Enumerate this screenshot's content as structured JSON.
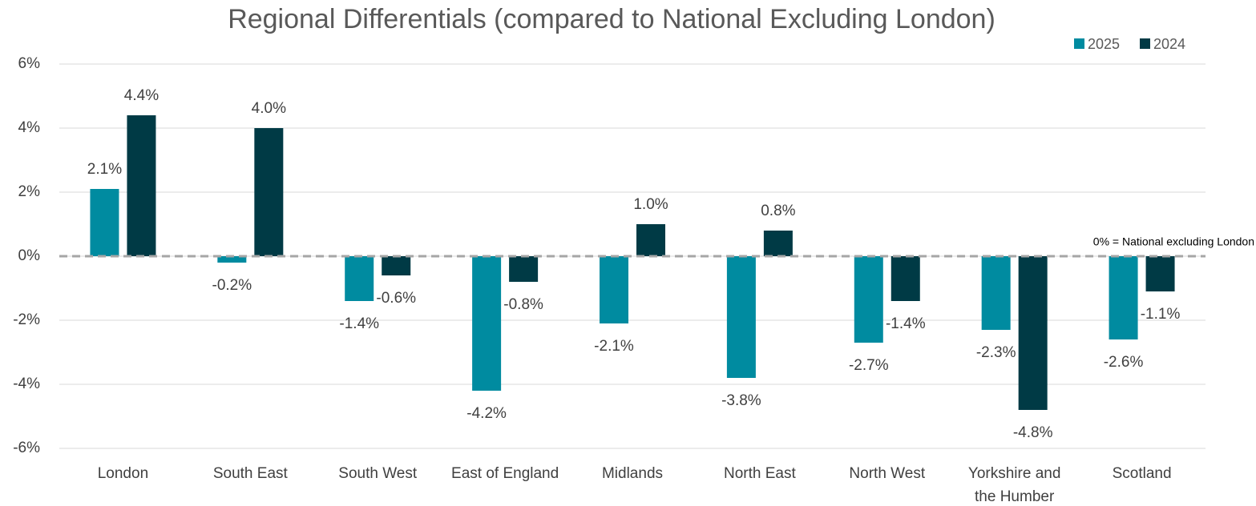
{
  "chart_data": {
    "type": "bar",
    "title": "Regional Differentials (compared to National Excluding London)",
    "categories": [
      "London",
      "South East",
      "South West",
      "East of England",
      "Midlands",
      "North East",
      "North West",
      "Yorkshire and the Humber",
      "Scotland"
    ],
    "series": [
      {
        "name": "2025",
        "color": "#008ba0",
        "values": [
          2.1,
          -0.2,
          -1.4,
          -4.2,
          -2.1,
          -3.8,
          -2.7,
          -2.3,
          -2.6
        ],
        "value_labels": [
          "2.1%",
          "-0.2%",
          "-1.4%",
          "-4.2%",
          "-2.1%",
          "-3.8%",
          "-2.7%",
          "-2.3%",
          "-2.6%"
        ]
      },
      {
        "name": "2024",
        "color": "#003a45",
        "values": [
          4.4,
          4.0,
          -0.6,
          -0.8,
          1.0,
          0.8,
          -1.4,
          -4.8,
          -1.1
        ],
        "value_labels": [
          "4.4%",
          "4.0%",
          "-0.6%",
          "-0.8%",
          "1.0%",
          "0.8%",
          "-1.4%",
          "-4.8%",
          "-1.1%"
        ]
      }
    ],
    "ylim": [
      -6,
      6
    ],
    "yticks": [
      {
        "value": -6,
        "label": "-6%"
      },
      {
        "value": -4,
        "label": "-4%"
      },
      {
        "value": -2,
        "label": "-2%"
      },
      {
        "value": 0,
        "label": "0%"
      },
      {
        "value": 2,
        "label": "2%"
      },
      {
        "value": 4,
        "label": "4%"
      },
      {
        "value": 6,
        "label": "6%"
      }
    ],
    "grid": true,
    "legend": "top-right",
    "annotation": "0% = National excluding London"
  }
}
